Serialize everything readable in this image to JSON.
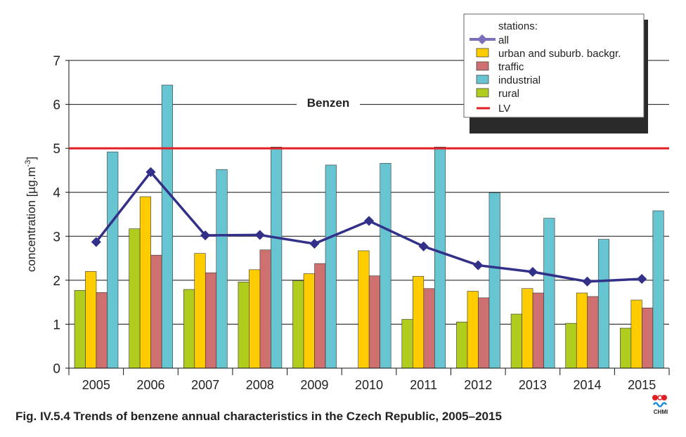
{
  "chart_data": {
    "type": "bar",
    "title": "Benzen",
    "caption": "Fig. IV.5.4  Trends of benzene annual characteristics in the Czech Republic, 2005–2015",
    "ylabel": "concentration [µg.m-3]",
    "ylabel_main": "concentration [µg.m",
    "ylabel_sup": "-3",
    "ylabel_end": "]",
    "ylim": [
      0,
      7
    ],
    "yticks": [
      0,
      1,
      2,
      3,
      4,
      5,
      6,
      7
    ],
    "grid": true,
    "legend_placement": "top-right",
    "legend_title": "stations:",
    "categories": [
      "2005",
      "2006",
      "2007",
      "2008",
      "2009",
      "2010",
      "2011",
      "2012",
      "2013",
      "2014",
      "2015"
    ],
    "series": [
      {
        "name": "rural",
        "color": "#b0cc1e",
        "values": [
          1.77,
          3.17,
          1.79,
          1.96,
          1.99,
          null,
          1.11,
          1.05,
          1.23,
          1.02,
          0.91
        ]
      },
      {
        "name": "urban and suburb. backgr.",
        "color": "#ffcc00",
        "values": [
          2.2,
          3.9,
          2.61,
          2.24,
          2.15,
          2.67,
          2.09,
          1.75,
          1.81,
          1.71,
          1.55
        ]
      },
      {
        "name": "traffic",
        "color": "#cf7070",
        "values": [
          1.72,
          2.57,
          2.17,
          2.69,
          2.38,
          2.1,
          1.81,
          1.6,
          1.71,
          1.63,
          1.37
        ]
      },
      {
        "name": "industrial",
        "color": "#66c5d0",
        "values": [
          4.92,
          6.44,
          4.52,
          5.03,
          4.62,
          4.66,
          5.03,
          3.99,
          3.41,
          2.93,
          3.58
        ]
      }
    ],
    "line_series": {
      "name": "all",
      "type": "line",
      "color": "#33308a",
      "legend_color": "#7a6fb8",
      "values": [
        2.87,
        4.46,
        3.02,
        3.03,
        2.83,
        3.35,
        2.77,
        2.34,
        2.19,
        1.97,
        2.03
      ]
    },
    "limit_line": {
      "name": "LV",
      "value": 5,
      "color": "#e31e24"
    }
  },
  "logo": {
    "text": "CHMI"
  }
}
